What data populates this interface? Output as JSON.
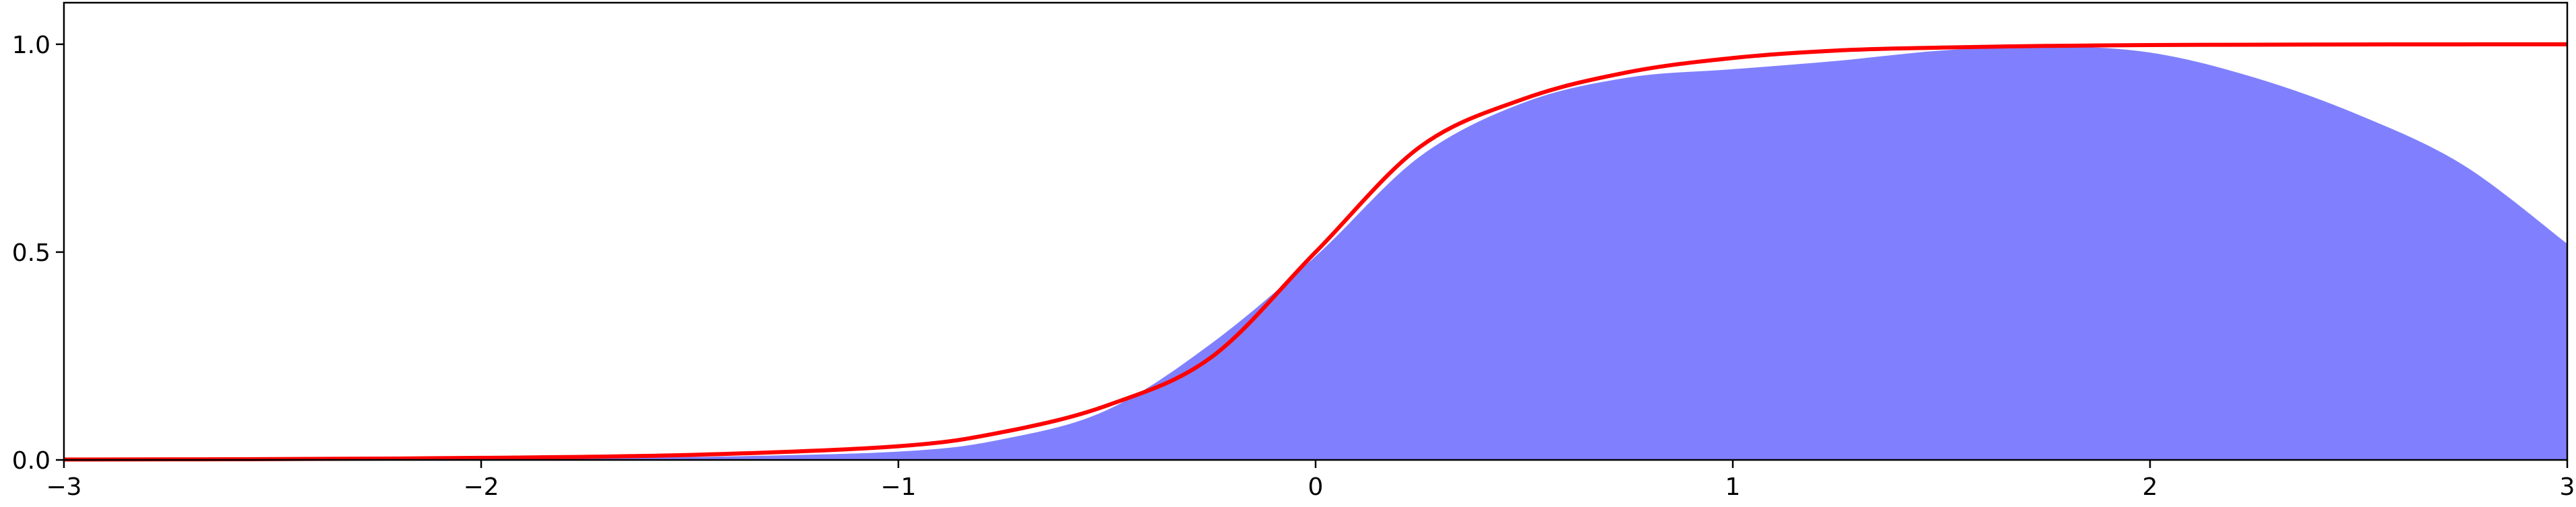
{
  "chart_data": {
    "type": "area",
    "title": "",
    "xlabel": "",
    "ylabel": "",
    "xlim": [
      -3,
      3
    ],
    "ylim": [
      0,
      1.1
    ],
    "grid": false,
    "x_ticks": [
      -3,
      -2,
      -1,
      0,
      1,
      2,
      3
    ],
    "x_tick_labels": [
      "−3",
      "−2",
      "−1",
      "0",
      "1",
      "2",
      "3"
    ],
    "y_ticks": [
      0.0,
      0.5,
      1.0
    ],
    "y_tick_labels": [
      "0.0",
      "0.5",
      "1.0"
    ],
    "series": [
      {
        "type": "area",
        "color": "#8080ff",
        "x": [
          -3,
          -2.5,
          -2,
          -1.5,
          -1,
          -0.75,
          -0.5,
          -0.25,
          0,
          0.25,
          0.5,
          0.75,
          1,
          1.25,
          1.5,
          1.75,
          2,
          2.25,
          2.5,
          2.75,
          3
        ],
        "y": [
          0.001,
          0.001,
          0.003,
          0.007,
          0.02,
          0.05,
          0.12,
          0.28,
          0.49,
          0.73,
          0.86,
          0.92,
          0.94,
          0.96,
          0.985,
          0.995,
          0.98,
          0.92,
          0.83,
          0.71,
          0.52
        ]
      },
      {
        "type": "line",
        "color": "#ff0000",
        "x": [
          -3,
          -2.5,
          -2,
          -1.5,
          -1,
          -0.75,
          -0.5,
          -0.25,
          0,
          0.25,
          0.5,
          0.75,
          1,
          1.25,
          1.5,
          1.75,
          2,
          2.25,
          2.5,
          2.75,
          3
        ],
        "y": [
          0.001,
          0.002,
          0.005,
          0.012,
          0.033,
          0.067,
          0.131,
          0.247,
          0.5,
          0.753,
          0.869,
          0.933,
          0.967,
          0.985,
          0.992,
          0.996,
          0.998,
          0.999,
          0.9995,
          0.9998,
          1.0
        ]
      }
    ]
  }
}
